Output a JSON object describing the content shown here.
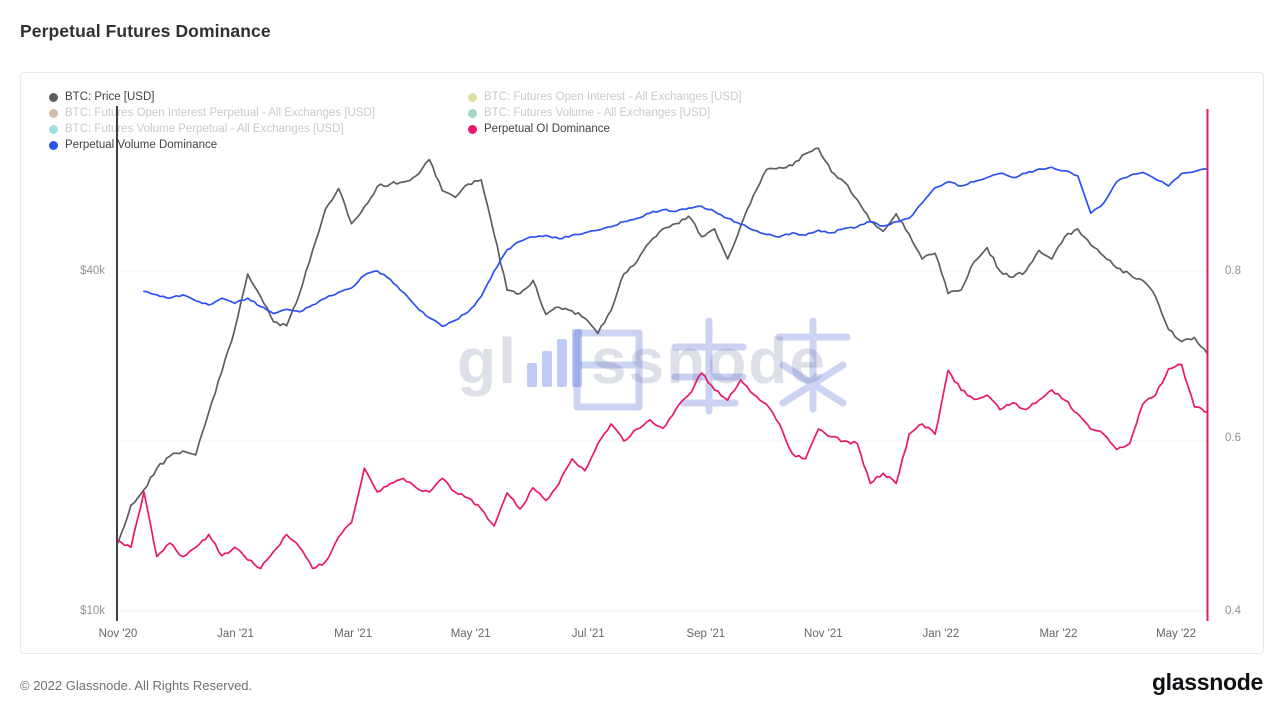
{
  "page": {
    "title": "Perpetual Futures Dominance",
    "watermark": {
      "full": "glassnode",
      "left": "gl",
      "right": "ssnode"
    },
    "footer": {
      "copyright": "© 2022 Glassnode. All Rights Reserved.",
      "brand": "glassnode"
    }
  },
  "legend": {
    "columns": [
      {
        "items": [
          {
            "id": "btc-price",
            "label": "BTC: Price [USD]",
            "color": "#5b5f62",
            "active": true
          },
          {
            "id": "btc-futures-open-interest-perpetual",
            "label": "BTC: Futures Open Interest Perpetual - All Exchanges [USD]",
            "color": "#a06a3a",
            "active": false
          },
          {
            "id": "btc-futures-volume-perpetual",
            "label": "BTC: Futures Volume Perpetual - All Exchanges [USD]",
            "color": "#2fb1bd",
            "active": false
          },
          {
            "id": "perpetual-volume-dominance",
            "label": "Perpetual Volume Dominance",
            "color": "#2b52f0",
            "active": true
          }
        ]
      },
      {
        "items": [
          {
            "id": "btc-futures-open-interest",
            "label": "BTC: Futures Open Interest - All Exchanges [USD]",
            "color": "#b2b92f",
            "active": false
          },
          {
            "id": "btc-futures-volume",
            "label": "BTC: Futures Volume - All Exchanges [USD]",
            "color": "#27a87f",
            "active": false
          },
          {
            "id": "perpetual-oi-dominance",
            "label": "Perpetual OI Dominance",
            "color": "#e8186d",
            "active": true
          }
        ]
      }
    ]
  },
  "chart_data": {
    "type": "line",
    "title": "Perpetual Futures Dominance",
    "x_ticks": [
      {
        "label": "Nov '20",
        "month": 0
      },
      {
        "label": "Jan '21",
        "month": 2
      },
      {
        "label": "Mar '21",
        "month": 4
      },
      {
        "label": "May '21",
        "month": 6
      },
      {
        "label": "Jul '21",
        "month": 8
      },
      {
        "label": "Sep '21",
        "month": 10
      },
      {
        "label": "Nov '21",
        "month": 12
      },
      {
        "label": "Jan '22",
        "month": 14
      },
      {
        "label": "Mar '22",
        "month": 16
      },
      {
        "label": "May '22",
        "month": 18
      }
    ],
    "axes": {
      "left": {
        "scale": "log",
        "unit": "USD",
        "ticks": [
          {
            "label": "$40k",
            "value": 40000
          },
          {
            "label": "$10k",
            "value": 10000
          }
        ]
      },
      "right": {
        "scale": "linear",
        "range": [
          0.4,
          1.0
        ],
        "ticks": [
          {
            "label": "0.8",
            "value": 0.8
          },
          {
            "label": "0.6",
            "value": 0.6
          },
          {
            "label": "0.4",
            "value": 0.4
          }
        ]
      }
    },
    "cursor_line_color": "#e8186d",
    "resolution": "weekly, Nov 2020 to Jun 2022",
    "series": [
      {
        "id": "btc-price",
        "name": "BTC: Price [USD]",
        "axis": "left",
        "color": "#5b5f62",
        "values": [
          13200,
          15400,
          16400,
          17900,
          18800,
          19200,
          18900,
          22500,
          26500,
          31500,
          39500,
          36000,
          32500,
          32000,
          36500,
          43500,
          51500,
          56000,
          48500,
          52000,
          56500,
          57000,
          57500,
          59000,
          63000,
          55500,
          54000,
          57000,
          58000,
          46500,
          37000,
          36500,
          38500,
          33500,
          34500,
          34000,
          33000,
          31000,
          34000,
          39500,
          41500,
          45000,
          47500,
          48500,
          50000,
          46000,
          47500,
          42000,
          48000,
          54500,
          60500,
          61000,
          61500,
          64500,
          66000,
          60000,
          57500,
          53500,
          49000,
          47000,
          50500,
          46500,
          42000,
          43000,
          36500,
          37000,
          41500,
          44000,
          40000,
          39000,
          40000,
          43500,
          42000,
          46000,
          47500,
          44500,
          42500,
          40500,
          39500,
          38500,
          36000,
          31500,
          30000,
          30500,
          28500
        ]
      },
      {
        "id": "perpetual-volume-dominance",
        "name": "Perpetual Volume Dominance",
        "axis": "right",
        "color": "#2b52f0",
        "values": [
          null,
          null,
          0.776,
          0.772,
          0.768,
          0.772,
          0.765,
          0.76,
          0.768,
          0.762,
          0.768,
          0.758,
          0.75,
          0.755,
          0.752,
          0.76,
          0.768,
          0.775,
          0.78,
          0.795,
          0.8,
          0.79,
          0.775,
          0.758,
          0.745,
          0.735,
          0.742,
          0.752,
          0.77,
          0.8,
          0.825,
          0.835,
          0.84,
          0.842,
          0.838,
          0.842,
          0.845,
          0.848,
          0.852,
          0.858,
          0.862,
          0.868,
          0.872,
          0.87,
          0.874,
          0.876,
          0.87,
          0.862,
          0.855,
          0.848,
          0.843,
          0.84,
          0.845,
          0.842,
          0.848,
          0.845,
          0.85,
          0.852,
          0.858,
          0.853,
          0.858,
          0.862,
          0.88,
          0.898,
          0.905,
          0.9,
          0.905,
          0.91,
          0.915,
          0.91,
          0.915,
          0.92,
          0.922,
          0.918,
          0.912,
          0.868,
          0.88,
          0.905,
          0.912,
          0.916,
          0.908,
          0.9,
          0.915,
          0.917,
          0.92
        ]
      },
      {
        "id": "perpetual-oi-dominance",
        "name": "Perpetual OI Dominance",
        "axis": "right",
        "color": "#e8186d",
        "values": [
          0.483,
          0.475,
          0.54,
          0.464,
          0.48,
          0.464,
          0.475,
          0.49,
          0.465,
          0.475,
          0.46,
          0.45,
          0.47,
          0.49,
          0.475,
          0.45,
          0.458,
          0.487,
          0.504,
          0.568,
          0.54,
          0.55,
          0.556,
          0.545,
          0.54,
          0.556,
          0.54,
          0.533,
          0.52,
          0.5,
          0.539,
          0.52,
          0.545,
          0.53,
          0.55,
          0.579,
          0.565,
          0.597,
          0.62,
          0.6,
          0.614,
          0.625,
          0.615,
          0.637,
          0.654,
          0.68,
          0.66,
          0.648,
          0.672,
          0.655,
          0.643,
          0.62,
          0.585,
          0.579,
          0.614,
          0.605,
          0.6,
          0.597,
          0.55,
          0.562,
          0.55,
          0.608,
          0.62,
          0.608,
          0.683,
          0.66,
          0.649,
          0.654,
          0.637,
          0.645,
          0.637,
          0.648,
          0.66,
          0.648,
          0.632,
          0.614,
          0.608,
          0.59,
          0.597,
          0.643,
          0.654,
          0.685,
          0.69,
          0.64,
          0.634
        ]
      }
    ]
  }
}
